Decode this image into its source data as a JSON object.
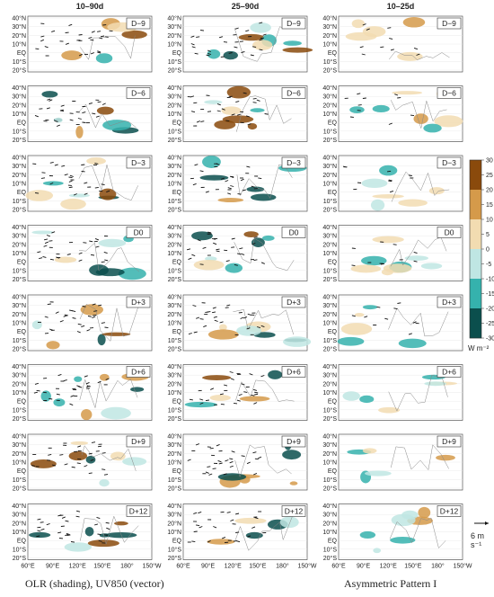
{
  "chart_data": {
    "type": "heatmap",
    "columns": [
      "10–90d",
      "25–90d",
      "10–25d"
    ],
    "rows": [
      "D−9",
      "D−6",
      "D−3",
      "D0",
      "D+3",
      "D+6",
      "D+9",
      "D+12"
    ],
    "lat_tick_labels": [
      "40°N",
      "30°N",
      "20°N",
      "10°N",
      "EQ",
      "10°S",
      "20°S"
    ],
    "lon_tick_labels": [
      "60°E",
      "90°E",
      "120°E",
      "150°E",
      "180°",
      "150°W"
    ],
    "colorbar": {
      "ticks": [
        30,
        25,
        20,
        15,
        10,
        5,
        0,
        -5,
        -10,
        -15,
        -20,
        -25,
        -30
      ],
      "unit": "W m⁻²",
      "vmin": -30,
      "vmax": 30
    },
    "vector_reference": "6 m s⁻¹",
    "captions": {
      "left": "OLR (shading), UV850 (vector)",
      "right": "Asymmetric Pattern I"
    },
    "colors": {
      "positive_max": "#8a4a0c",
      "positive_mid": "#d59a4a",
      "positive_min": "#f2dcb1",
      "negative_min": "#bfe6e3",
      "negative_mid": "#35b2ad",
      "negative_max": "#0b4f4d",
      "coast": "#888888",
      "vector": "#111111"
    }
  }
}
